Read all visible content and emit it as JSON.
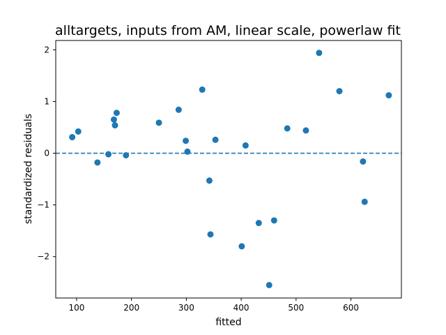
{
  "chart_data": {
    "type": "scatter",
    "title": "alltargets, inputs from AM, linear scale, powerlaw fit",
    "xlabel": "fitted",
    "ylabel": "standardized residuals",
    "xlim": [
      62,
      692
    ],
    "ylim": [
      -2.8,
      2.18
    ],
    "xticks": [
      100,
      200,
      300,
      400,
      500,
      600
    ],
    "yticks": [
      -2,
      -1,
      0,
      1,
      2
    ],
    "ytick_labels": [
      "−2",
      "−1",
      "0",
      "1",
      "2"
    ],
    "reference_line": {
      "y": 0,
      "style": "dashed",
      "color": "#1f77b4"
    },
    "grid": false,
    "marker_color": "#1f77b4",
    "points": [
      {
        "x": 92,
        "y": 0.31
      },
      {
        "x": 103,
        "y": 0.42
      },
      {
        "x": 138,
        "y": -0.18
      },
      {
        "x": 158,
        "y": -0.02
      },
      {
        "x": 168,
        "y": 0.65
      },
      {
        "x": 170,
        "y": 0.54
      },
      {
        "x": 173,
        "y": 0.78
      },
      {
        "x": 190,
        "y": -0.04
      },
      {
        "x": 250,
        "y": 0.59
      },
      {
        "x": 286,
        "y": 0.84
      },
      {
        "x": 299,
        "y": 0.24
      },
      {
        "x": 302,
        "y": 0.03
      },
      {
        "x": 329,
        "y": 1.23
      },
      {
        "x": 342,
        "y": -0.53
      },
      {
        "x": 344,
        "y": -1.57
      },
      {
        "x": 353,
        "y": 0.26
      },
      {
        "x": 401,
        "y": -1.8
      },
      {
        "x": 408,
        "y": 0.15
      },
      {
        "x": 432,
        "y": -1.35
      },
      {
        "x": 451,
        "y": -2.55
      },
      {
        "x": 460,
        "y": -1.3
      },
      {
        "x": 484,
        "y": 0.48
      },
      {
        "x": 518,
        "y": 0.44
      },
      {
        "x": 542,
        "y": 1.94
      },
      {
        "x": 579,
        "y": 1.2
      },
      {
        "x": 622,
        "y": -0.16
      },
      {
        "x": 625,
        "y": -0.94
      },
      {
        "x": 669,
        "y": 1.12
      }
    ]
  }
}
